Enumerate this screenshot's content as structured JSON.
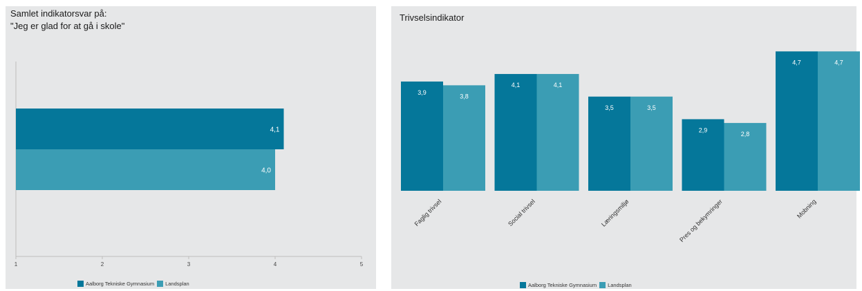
{
  "colors": {
    "series1": "#05779a",
    "series2": "#3b9db4",
    "panel_bg": "#e6e7e8"
  },
  "legend": [
    "Aalborg Tekniske Gymnasium",
    "Landsplan"
  ],
  "chart_data": [
    {
      "type": "bar",
      "orientation": "horizontal",
      "title": "Samlet indikatorsvar på:",
      "subtitle": "\"Jeg er glad for at gå i skole\"",
      "xlim": [
        1,
        5
      ],
      "xticks": [
        "1",
        "2",
        "3",
        "4",
        "5"
      ],
      "series": [
        {
          "name": "Aalborg Tekniske Gymnasium",
          "values": [
            4.1
          ],
          "labels": [
            "4,1"
          ]
        },
        {
          "name": "Landsplan",
          "values": [
            4.0
          ],
          "labels": [
            "4,0"
          ]
        }
      ],
      "legend_position": "bottom"
    },
    {
      "type": "bar",
      "title": "Trivselsindikator",
      "categories": [
        "Faglig trivsel",
        "Social trivsel",
        "Læringsmiljø",
        "Pres og bekymringer",
        "Mobning"
      ],
      "ylim": [
        1,
        5
      ],
      "series": [
        {
          "name": "Aalborg Tekniske Gymnasium",
          "values": [
            3.9,
            4.1,
            3.5,
            2.9,
            4.7
          ],
          "labels": [
            "3,9",
            "4,1",
            "3,5",
            "2,9",
            "4,7"
          ]
        },
        {
          "name": "Landsplan",
          "values": [
            3.8,
            4.1,
            3.5,
            2.8,
            4.7
          ],
          "labels": [
            "3,8",
            "4,1",
            "3,5",
            "2,8",
            "4,7"
          ]
        }
      ],
      "legend_position": "bottom"
    }
  ]
}
